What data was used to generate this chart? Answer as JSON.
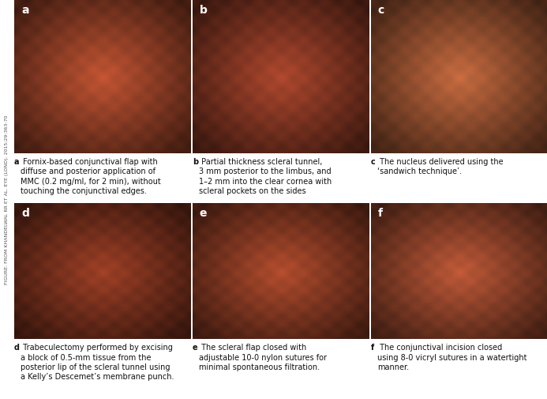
{
  "panels": [
    {
      "label": "a",
      "caption_bold": "a",
      "caption_rest": " Fornix-based conjunctival flap with\ndiffuse and posterior application of\nMMC (0.2 mg/ml, for 2 min), without\ntouching the conjunctival edges.",
      "photo_base": [
        0.76,
        0.33,
        0.2
      ]
    },
    {
      "label": "b",
      "caption_bold": "b",
      "caption_rest": " Partial thickness scleral tunnel,\n3 mm posterior to the limbus, and\n1–2 mm into the clear cornea with\nscleral pockets on the sides",
      "photo_base": [
        0.68,
        0.28,
        0.18
      ]
    },
    {
      "label": "c",
      "caption_bold": "c",
      "caption_rest": " The nucleus delivered using the\n‘sandwich technique’.",
      "photo_base": [
        0.78,
        0.42,
        0.25
      ]
    },
    {
      "label": "d",
      "caption_bold": "d",
      "caption_rest": " Trabeculectomy performed by excising\na block of 0.5-mm tissue from the\nposterior lip of the scleral tunnel using\na Kelly’s Descemet’s membrane punch.",
      "photo_base": [
        0.62,
        0.25,
        0.15
      ]
    },
    {
      "label": "e",
      "caption_bold": "e",
      "caption_rest": " The scleral flap closed with\nadjustable 10-0 nylon sutures for\nminimal spontaneous filtration.",
      "photo_base": [
        0.7,
        0.3,
        0.18
      ]
    },
    {
      "label": "f",
      "caption_bold": "f",
      "caption_rest": " The conjunctival incision closed\nusing 8-0 vicryl sutures in a watertight\nmanner.",
      "photo_base": [
        0.75,
        0.35,
        0.22
      ]
    }
  ],
  "sidebar_text": "FIGURE: FROM KHANDELWAL RR ET AL. EYE (LOND). 2015;29:363-70",
  "background_color": "#ffffff",
  "caption_fontsize": 7.0,
  "label_fontsize": 10,
  "label_color": "#ffffff",
  "caption_text_color": "#111111",
  "sidebar_color": "#555555",
  "sidebar_fontsize": 4.5
}
